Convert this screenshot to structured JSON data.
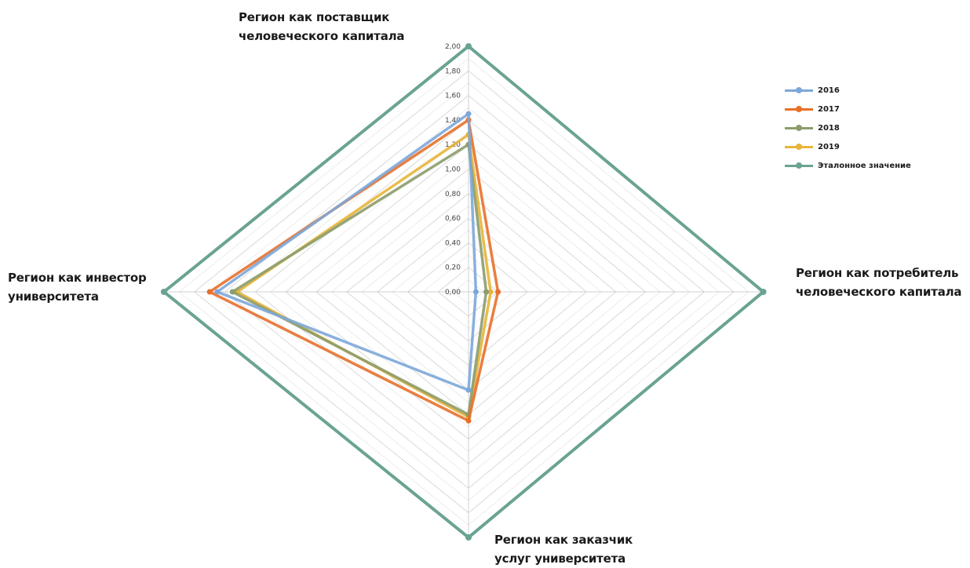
{
  "chart_data": {
    "type": "radar",
    "title": "",
    "axes": [
      [
        "Регион как поставщик",
        "человеческого капитала"
      ],
      [
        "Регион как потребитель",
        "человеческого капитала"
      ],
      [
        "Регион как заказчик",
        "услуг университета"
      ],
      [
        "Регион как инвестор",
        "университета"
      ]
    ],
    "range": [
      0,
      2
    ],
    "ticks": [
      "0,00",
      "0,20",
      "0,40",
      "0,60",
      "0,80",
      "1,00",
      "1,20",
      "1,40",
      "1,60",
      "1,80",
      "2,00"
    ],
    "legend_position": "right",
    "series": [
      {
        "name": "2016",
        "color": "#7da7d9",
        "values": [
          1.45,
          0.05,
          0.8,
          1.65
        ]
      },
      {
        "name": "2017",
        "color": "#e8702a",
        "values": [
          1.4,
          0.2,
          1.05,
          1.7
        ]
      },
      {
        "name": "2018",
        "color": "#8c9c6b",
        "values": [
          1.2,
          0.12,
          1.0,
          1.55
        ]
      },
      {
        "name": "2019",
        "color": "#e8b53a",
        "values": [
          1.28,
          0.15,
          1.02,
          1.52
        ]
      },
      {
        "name": "Эталонное значение",
        "color": "#6aa393",
        "values": [
          2.0,
          2.0,
          2.0,
          2.0
        ]
      }
    ]
  }
}
